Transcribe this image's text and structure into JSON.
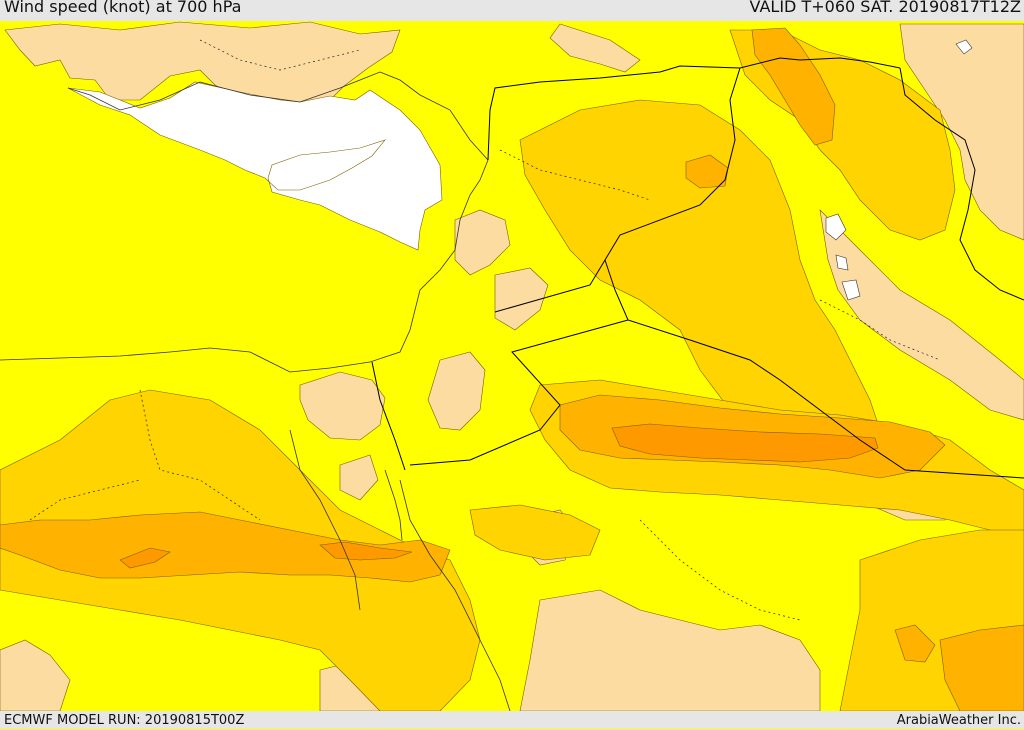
{
  "header": {
    "title": "Wind speed (knot) at 700 hPa",
    "valid": "VALID T+060 SAT. 20190817T12Z"
  },
  "footer": {
    "model_run": "ECMWF MODEL RUN: 20190815T00Z",
    "brand": "ArabiaWeather Inc."
  },
  "colors": {
    "speed_band_lowest": "#fddca2",
    "speed_band_low": "#ffff00",
    "speed_band_mid": "#ffd400",
    "speed_band_high": "#ffb300",
    "speed_band_highest": "#ff9900",
    "masked_area": "#ffffff",
    "contour_line": "#7a6000",
    "border_line": "#000000",
    "header_background": "#e6e6e6"
  }
}
